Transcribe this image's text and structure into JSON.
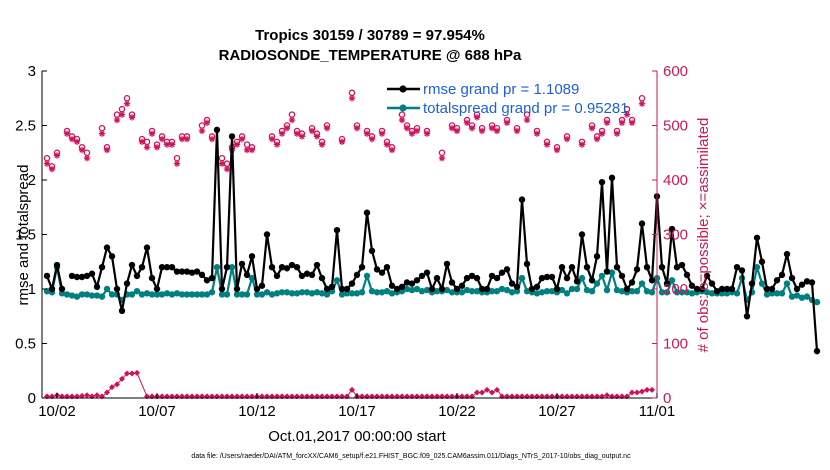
{
  "chart_data": {
    "type": "line",
    "title_line1": "Tropics 30159 / 30789 = 97.954%",
    "title_line2": "RADIOSONDE_TEMPERATURE @ 688 hPa",
    "xlabel": "Oct.01,2017 00:00:00 start",
    "ylabel_left": "rmse and totalspread",
    "ylabel_right": "# of obs: o=possible; ×=assimilated",
    "ylim_left": [
      0,
      3
    ],
    "ylim_right": [
      0,
      600
    ],
    "xlim": [
      1.25,
      32
    ],
    "x_ticks": [
      {
        "x": 2,
        "label": "10/02"
      },
      {
        "x": 7,
        "label": "10/07"
      },
      {
        "x": 12,
        "label": "10/12"
      },
      {
        "x": 17,
        "label": "10/17"
      },
      {
        "x": 22,
        "label": "10/22"
      },
      {
        "x": 27,
        "label": "10/27"
      },
      {
        "x": 32,
        "label": "11/01"
      }
    ],
    "y_ticks_left": [
      0,
      0.5,
      1,
      1.5,
      2,
      2.5,
      3
    ],
    "y_ticks_right": [
      0,
      100,
      200,
      300,
      400,
      500,
      600
    ],
    "legend": [
      "rmse grand pr = 1.1089",
      "totalspread grand pr = 0.95281"
    ],
    "colors": {
      "rmse": "#000000",
      "spread": "#008080",
      "obs": "#d0105a",
      "legend_text": "#1f5fd6",
      "right_axis": "#c8195a"
    },
    "x_start": 1.5,
    "x_step": 0.25,
    "rmse": [
      1.12,
      1.0,
      1.22,
      1.0,
      null,
      1.12,
      1.11,
      1.11,
      1.12,
      1.14,
      1.02,
      1.2,
      1.38,
      1.3,
      1.0,
      0.8,
      1.05,
      1.22,
      1.12,
      1.2,
      1.38,
      1.1,
      1.0,
      1.2,
      1.2,
      1.2,
      1.16,
      1.16,
      1.16,
      1.15,
      1.16,
      1.13,
      1.08,
      1.1,
      2.46,
      1.0,
      1.2,
      2.4,
      1.0,
      1.23,
      1.13,
      1.3,
      1.0,
      1.03,
      1.5,
      1.2,
      1.12,
      1.2,
      1.19,
      1.22,
      1.2,
      1.12,
      1.14,
      1.13,
      1.22,
      1.1,
      1.0,
      1.02,
      1.54,
      1.0,
      1.0,
      1.05,
      1.13,
      1.2,
      1.7,
      1.35,
      1.18,
      1.15,
      1.2,
      1.03,
      1.0,
      1.02,
      1.06,
      1.05,
      1.08,
      1.12,
      1.15,
      1.0,
      1.1,
      1.0,
      1.23,
      1.06,
      1.0,
      1.03,
      1.1,
      1.12,
      1.1,
      1.0,
      1.0,
      1.12,
      1.1,
      1.15,
      1.18,
      1.05,
      1.02,
      1.82,
      1.23,
      1.0,
      1.02,
      1.1,
      1.11,
      1.11,
      1.0,
      1.2,
      1.1,
      1.2,
      1.07,
      1.5,
      1.2,
      1.08,
      1.3,
      1.98,
      1.16,
      2.02,
      1.2,
      1.12,
      1.0,
      1.06,
      1.18,
      1.6,
      1.2,
      1.08,
      1.85,
      1.2,
      1.05,
      1.55,
      1.2,
      1.22,
      1.13,
      1.03,
      1.0,
      1.0,
      1.12,
      1.05,
      0.98,
      1.0,
      1.0,
      1.0,
      1.2,
      1.17,
      0.75,
      1.05,
      1.47,
      1.25,
      1.0,
      1.0,
      1.08,
      1.13,
      1.32,
      1.1,
      1.0,
      1.04,
      1.07,
      1.06,
      0.43
    ],
    "spread": [
      0.98,
      0.97,
      1.2,
      0.96,
      0.95,
      0.94,
      0.93,
      0.95,
      0.95,
      0.94,
      0.94,
      0.93,
      1.0,
      0.95,
      0.95,
      0.9,
      0.95,
      0.95,
      0.98,
      0.95,
      0.96,
      0.95,
      0.95,
      0.95,
      0.96,
      0.95,
      0.96,
      0.95,
      0.95,
      0.95,
      0.95,
      0.95,
      0.95,
      0.97,
      1.2,
      0.95,
      0.95,
      1.2,
      0.95,
      0.95,
      0.95,
      1.1,
      0.95,
      0.95,
      0.97,
      0.95,
      0.96,
      0.97,
      0.97,
      0.96,
      0.96,
      0.97,
      0.97,
      0.96,
      0.97,
      0.96,
      0.95,
      0.98,
      1.08,
      0.95,
      0.96,
      0.96,
      0.96,
      0.97,
      1.12,
      0.98,
      0.97,
      0.97,
      0.98,
      0.96,
      0.97,
      0.98,
      1.0,
      0.99,
      1.0,
      0.98,
      0.99,
      0.97,
      0.98,
      0.98,
      0.99,
      0.97,
      0.97,
      0.97,
      0.99,
      0.98,
      0.98,
      0.97,
      0.97,
      0.98,
      0.98,
      1.0,
      0.99,
      0.97,
      0.98,
      1.1,
      0.98,
      0.97,
      0.96,
      0.97,
      0.98,
      0.98,
      0.97,
      0.99,
      0.96,
      1.0,
      1.0,
      1.1,
      0.99,
      0.98,
      1.05,
      1.12,
      0.99,
      1.15,
      0.99,
      0.98,
      0.97,
      0.98,
      0.98,
      1.05,
      0.98,
      0.97,
      1.1,
      0.97,
      0.97,
      1.08,
      0.97,
      0.97,
      0.97,
      0.96,
      0.97,
      0.98,
      0.97,
      0.96,
      0.96,
      0.96,
      0.96,
      0.97,
      0.96,
      1.1,
      0.9,
      0.97,
      1.2,
      1.05,
      0.95,
      0.96,
      0.96,
      0.96,
      1.05,
      0.93,
      0.94,
      0.92,
      0.93,
      0.9,
      0.88
    ],
    "obs_possible": [
      [
        1.5,
        440
      ],
      [
        1.75,
        425
      ],
      [
        2.0,
        450
      ],
      [
        2.5,
        490
      ],
      [
        2.75,
        480
      ],
      [
        3.0,
        475
      ],
      [
        3.25,
        460
      ],
      [
        3.5,
        450
      ],
      [
        4.25,
        495
      ],
      [
        4.5,
        460
      ],
      [
        5.0,
        520
      ],
      [
        5.25,
        530
      ],
      [
        5.5,
        550
      ],
      [
        5.75,
        520
      ],
      [
        6.25,
        475
      ],
      [
        6.5,
        470
      ],
      [
        6.75,
        490
      ],
      [
        7.0,
        465
      ],
      [
        7.25,
        480
      ],
      [
        7.5,
        470
      ],
      [
        7.75,
        470
      ],
      [
        8.0,
        440
      ],
      [
        8.25,
        480
      ],
      [
        8.5,
        480
      ],
      [
        9.25,
        500
      ],
      [
        9.5,
        510
      ],
      [
        9.75,
        480
      ],
      [
        10.25,
        440
      ],
      [
        10.5,
        430
      ],
      [
        10.75,
        460
      ],
      [
        11.0,
        470
      ],
      [
        11.25,
        480
      ],
      [
        11.5,
        465
      ],
      [
        11.75,
        460
      ],
      [
        12.75,
        480
      ],
      [
        13.0,
        470
      ],
      [
        13.25,
        490
      ],
      [
        13.5,
        500
      ],
      [
        13.75,
        520
      ],
      [
        14.0,
        490
      ],
      [
        14.25,
        485
      ],
      [
        14.75,
        495
      ],
      [
        15.0,
        485
      ],
      [
        15.25,
        470
      ],
      [
        15.5,
        500
      ],
      [
        16.25,
        475
      ],
      [
        16.75,
        560
      ],
      [
        17.0,
        500
      ],
      [
        17.5,
        490
      ],
      [
        17.75,
        480
      ],
      [
        18.25,
        490
      ],
      [
        18.5,
        470
      ],
      [
        18.75,
        460
      ],
      [
        19.25,
        520
      ],
      [
        19.5,
        500
      ],
      [
        19.75,
        490
      ],
      [
        20.0,
        495
      ],
      [
        20.5,
        490
      ],
      [
        21.25,
        450
      ],
      [
        21.75,
        500
      ],
      [
        22.0,
        495
      ],
      [
        22.5,
        510
      ],
      [
        22.75,
        500
      ],
      [
        23.0,
        520
      ],
      [
        23.25,
        495
      ],
      [
        23.75,
        500
      ],
      [
        24.0,
        495
      ],
      [
        24.5,
        510
      ],
      [
        25.0,
        495
      ],
      [
        25.5,
        520
      ],
      [
        26.0,
        490
      ],
      [
        26.5,
        470
      ],
      [
        27.0,
        460
      ],
      [
        27.5,
        480
      ],
      [
        28.25,
        470
      ],
      [
        28.75,
        500
      ],
      [
        29.0,
        480
      ],
      [
        29.25,
        490
      ],
      [
        29.5,
        510
      ],
      [
        30.0,
        490
      ],
      [
        30.25,
        510
      ],
      [
        30.5,
        530
      ],
      [
        30.75,
        510
      ],
      [
        31.25,
        550
      ]
    ],
    "obs_assim": [
      [
        1.5,
        430
      ],
      [
        1.75,
        420
      ],
      [
        2.0,
        445
      ],
      [
        2.5,
        485
      ],
      [
        2.75,
        475
      ],
      [
        3.0,
        470
      ],
      [
        3.25,
        455
      ],
      [
        3.5,
        440
      ],
      [
        4.25,
        485
      ],
      [
        4.5,
        455
      ],
      [
        5.0,
        510
      ],
      [
        5.25,
        520
      ],
      [
        5.5,
        540
      ],
      [
        5.75,
        515
      ],
      [
        6.25,
        470
      ],
      [
        6.5,
        460
      ],
      [
        6.75,
        485
      ],
      [
        7.0,
        460
      ],
      [
        7.25,
        475
      ],
      [
        7.5,
        465
      ],
      [
        7.75,
        465
      ],
      [
        8.0,
        430
      ],
      [
        8.25,
        475
      ],
      [
        8.5,
        475
      ],
      [
        9.25,
        490
      ],
      [
        9.5,
        505
      ],
      [
        9.75,
        475
      ],
      [
        10.25,
        430
      ],
      [
        10.5,
        420
      ],
      [
        10.75,
        455
      ],
      [
        11.0,
        465
      ],
      [
        11.25,
        475
      ],
      [
        11.5,
        455
      ],
      [
        11.75,
        455
      ],
      [
        12.75,
        475
      ],
      [
        13.0,
        465
      ],
      [
        13.25,
        485
      ],
      [
        13.5,
        495
      ],
      [
        13.75,
        510
      ],
      [
        14.0,
        485
      ],
      [
        14.25,
        480
      ],
      [
        14.75,
        490
      ],
      [
        15.0,
        480
      ],
      [
        15.25,
        465
      ],
      [
        15.5,
        495
      ],
      [
        16.25,
        470
      ],
      [
        16.75,
        550
      ],
      [
        17.0,
        495
      ],
      [
        17.5,
        485
      ],
      [
        17.75,
        475
      ],
      [
        18.25,
        485
      ],
      [
        18.5,
        465
      ],
      [
        18.75,
        455
      ],
      [
        19.25,
        510
      ],
      [
        19.5,
        495
      ],
      [
        19.75,
        485
      ],
      [
        20.0,
        490
      ],
      [
        20.5,
        485
      ],
      [
        21.25,
        440
      ],
      [
        21.75,
        495
      ],
      [
        22.0,
        490
      ],
      [
        22.5,
        505
      ],
      [
        22.75,
        495
      ],
      [
        23.0,
        515
      ],
      [
        23.25,
        490
      ],
      [
        23.75,
        495
      ],
      [
        24.0,
        490
      ],
      [
        24.5,
        505
      ],
      [
        25.0,
        490
      ],
      [
        25.5,
        510
      ],
      [
        26.0,
        485
      ],
      [
        26.5,
        465
      ],
      [
        27.0,
        455
      ],
      [
        27.5,
        475
      ],
      [
        28.25,
        465
      ],
      [
        28.75,
        495
      ],
      [
        29.0,
        475
      ],
      [
        29.25,
        485
      ],
      [
        29.5,
        505
      ],
      [
        30.0,
        485
      ],
      [
        30.25,
        505
      ],
      [
        30.5,
        520
      ],
      [
        30.75,
        505
      ],
      [
        31.25,
        540
      ]
    ],
    "obs_low": [
      [
        1.5,
        3
      ],
      [
        1.75,
        3
      ],
      [
        2.0,
        5
      ],
      [
        2.25,
        3
      ],
      [
        2.5,
        3
      ],
      [
        2.75,
        3
      ],
      [
        3.0,
        3
      ],
      [
        3.25,
        4
      ],
      [
        3.5,
        5
      ],
      [
        3.75,
        3
      ],
      [
        4.0,
        5
      ],
      [
        4.25,
        3
      ],
      [
        4.5,
        10
      ],
      [
        4.75,
        20
      ],
      [
        5.0,
        25
      ],
      [
        5.25,
        35
      ],
      [
        5.5,
        45
      ],
      [
        5.75,
        45
      ],
      [
        6.0,
        46
      ],
      [
        6.5,
        3
      ],
      [
        6.75,
        3
      ],
      [
        7.0,
        3
      ],
      [
        7.25,
        3
      ],
      [
        7.5,
        3
      ],
      [
        7.75,
        3
      ],
      [
        8.0,
        3
      ],
      [
        8.25,
        3
      ],
      [
        8.5,
        3
      ],
      [
        8.75,
        3
      ],
      [
        9.0,
        3
      ],
      [
        9.25,
        3
      ],
      [
        9.5,
        3
      ],
      [
        9.75,
        3
      ],
      [
        10.0,
        3
      ],
      [
        10.25,
        3
      ],
      [
        10.5,
        3
      ],
      [
        10.75,
        3
      ],
      [
        11.0,
        3
      ],
      [
        11.25,
        3
      ],
      [
        11.5,
        3
      ],
      [
        11.75,
        3
      ],
      [
        12.0,
        3
      ],
      [
        12.25,
        3
      ],
      [
        12.5,
        3
      ],
      [
        12.75,
        3
      ],
      [
        13.0,
        3
      ],
      [
        13.25,
        3
      ],
      [
        13.5,
        3
      ],
      [
        13.75,
        3
      ],
      [
        14.0,
        3
      ],
      [
        14.25,
        3
      ],
      [
        14.5,
        3
      ],
      [
        14.75,
        3
      ],
      [
        15.0,
        3
      ],
      [
        15.25,
        3
      ],
      [
        15.5,
        3
      ],
      [
        15.75,
        3
      ],
      [
        16.0,
        3
      ],
      [
        16.25,
        3
      ],
      [
        16.5,
        3
      ],
      [
        16.75,
        15
      ],
      [
        17.0,
        3
      ],
      [
        17.25,
        3
      ],
      [
        17.5,
        3
      ],
      [
        17.75,
        3
      ],
      [
        18.0,
        3
      ],
      [
        18.25,
        3
      ],
      [
        18.5,
        3
      ],
      [
        18.75,
        3
      ],
      [
        19.0,
        3
      ],
      [
        19.25,
        3
      ],
      [
        19.5,
        3
      ],
      [
        19.75,
        3
      ],
      [
        20.0,
        3
      ],
      [
        20.25,
        3
      ],
      [
        20.5,
        3
      ],
      [
        20.75,
        3
      ],
      [
        21.0,
        3
      ],
      [
        21.25,
        3
      ],
      [
        21.5,
        3
      ],
      [
        21.75,
        3
      ],
      [
        22.0,
        3
      ],
      [
        22.25,
        3
      ],
      [
        22.5,
        3
      ],
      [
        22.75,
        3
      ],
      [
        23.0,
        10
      ],
      [
        23.25,
        10
      ],
      [
        23.5,
        15
      ],
      [
        23.75,
        10
      ],
      [
        24.0,
        15
      ],
      [
        24.25,
        3
      ],
      [
        24.5,
        3
      ],
      [
        24.75,
        3
      ],
      [
        25.0,
        3
      ],
      [
        25.25,
        3
      ],
      [
        25.5,
        3
      ],
      [
        25.75,
        3
      ],
      [
        26.0,
        3
      ],
      [
        26.25,
        3
      ],
      [
        26.5,
        3
      ],
      [
        26.75,
        3
      ],
      [
        27.0,
        3
      ],
      [
        27.25,
        3
      ],
      [
        27.5,
        3
      ],
      [
        27.75,
        3
      ],
      [
        28.0,
        3
      ],
      [
        28.25,
        3
      ],
      [
        28.5,
        3
      ],
      [
        28.75,
        3
      ],
      [
        29.0,
        3
      ],
      [
        29.25,
        3
      ],
      [
        29.5,
        5
      ],
      [
        29.75,
        3
      ],
      [
        30.0,
        3
      ],
      [
        30.25,
        3
      ],
      [
        30.5,
        3
      ],
      [
        30.75,
        10
      ],
      [
        31.0,
        10
      ],
      [
        31.25,
        12
      ],
      [
        31.5,
        15
      ],
      [
        31.75,
        15
      ]
    ],
    "footnote": "data file: /Users/raeder/DAI/ATM_forcXX/CAM6_setup/f.e21.FHIST_BGC.f09_025.CAM6assim.011/Diags_NTrS_2017-10/obs_diag_output.nc"
  }
}
